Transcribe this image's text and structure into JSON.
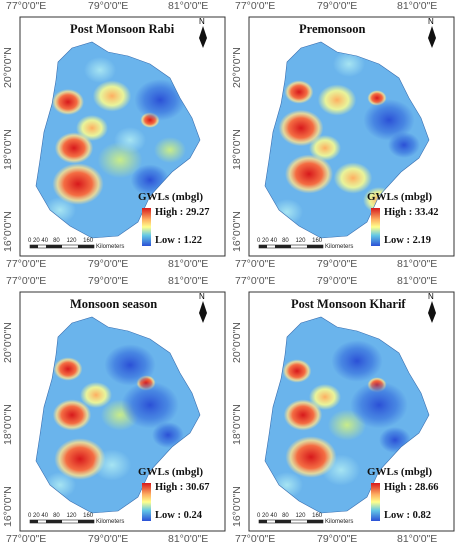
{
  "maps": [
    {
      "title": "Post Monsoon Rabi",
      "high_label": "High : 29.27",
      "low_label": "Low : 1.22"
    },
    {
      "title": "Premonsoon",
      "high_label": "High : 33.42",
      "low_label": "Low : 2.19"
    },
    {
      "title": "Monsoon season",
      "high_label": "High : 30.67",
      "low_label": "Low : 0.24"
    },
    {
      "title": "Post Monsoon Kharif",
      "high_label": "High : 28.66",
      "low_label": "Low : 0.82"
    }
  ],
  "legend_title": "GWLs (mbgl)",
  "longitude_labels": [
    "77°0'0\"E",
    "79°0'0\"E",
    "81°0'0\"E"
  ],
  "latitude_labels": [
    "20°0'0\"N",
    "18°0'0\"N",
    "16°0'0\"N"
  ],
  "scale_bar_ticks": [
    "0",
    "20",
    "40",
    "80",
    "120",
    "160"
  ],
  "scale_bar_unit": "Kilometers",
  "north_arrow_label": "N",
  "colors": {
    "high": "#d7191c",
    "mid_high": "#fdae61",
    "mid": "#ffff8c",
    "mid_low": "#64c8e6",
    "low": "#2b50d6",
    "frame": "#333333"
  }
}
